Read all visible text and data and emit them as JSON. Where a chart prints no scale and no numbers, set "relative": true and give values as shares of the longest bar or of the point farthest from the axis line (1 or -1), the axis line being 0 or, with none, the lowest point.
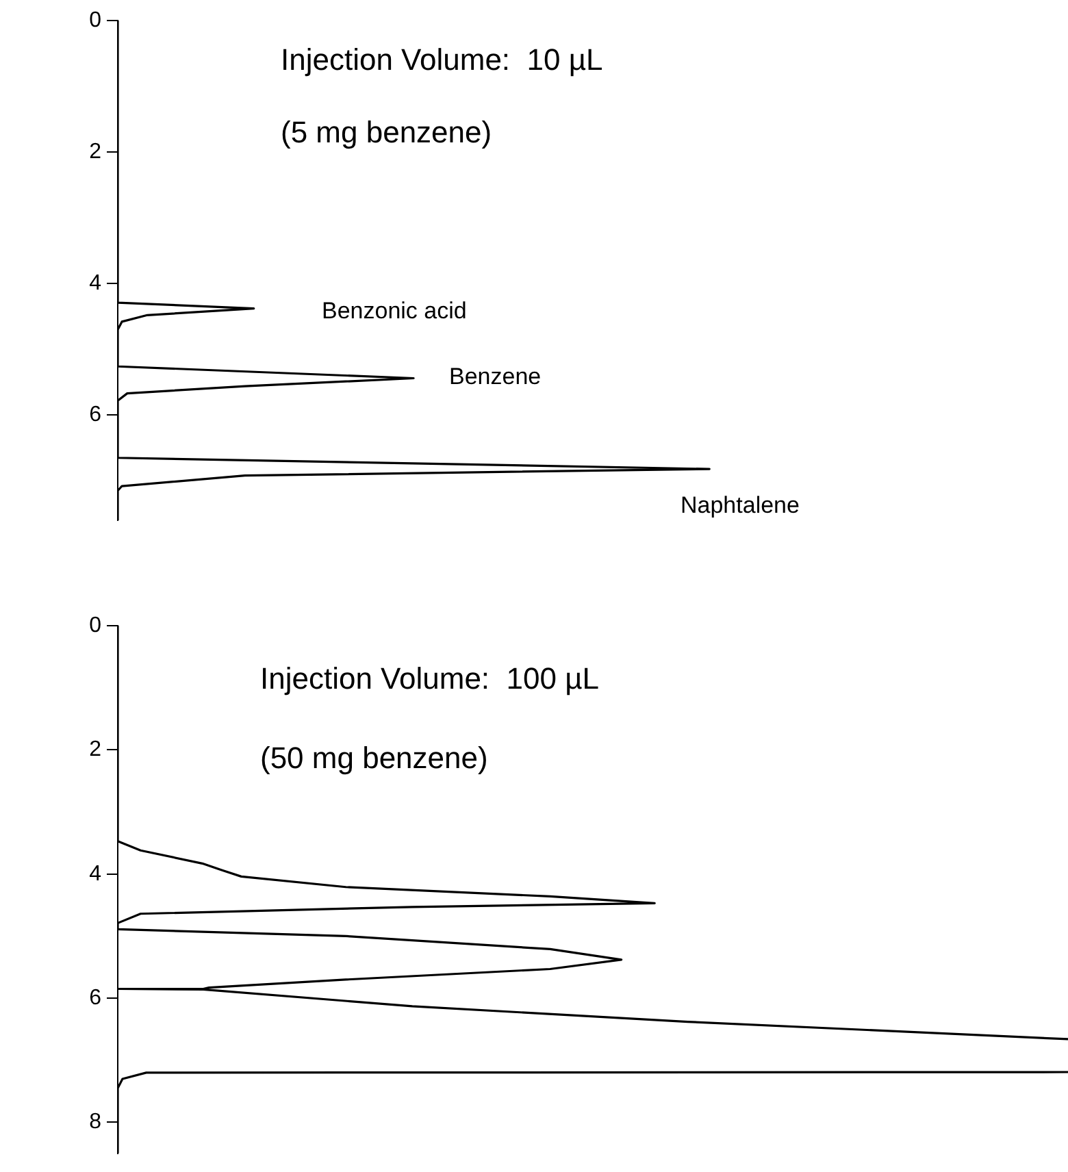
{
  "chart_data": [
    {
      "type": "line",
      "orientation": "horizontal",
      "relative": true,
      "title": "Injection Volume:  10 µL",
      "subtitle": "(5 mg benzene)",
      "color": "#000000",
      "marker": "none",
      "line_style": "solid",
      "x": [
        0,
        4.29,
        4.38,
        4.48,
        4.58,
        4.7,
        5.26,
        5.44,
        5.56,
        5.67,
        5.78,
        6.65,
        6.82,
        6.92,
        7.08,
        7.15,
        7.6
      ],
      "values": [
        0,
        0,
        0.23,
        0.05,
        0.007,
        0,
        0,
        0.5,
        0.215,
        0.016,
        0,
        0,
        1,
        0.215,
        0.007,
        0,
        0
      ],
      "ylim": [
        7.6,
        0
      ],
      "yticks": [
        0,
        2,
        4,
        6
      ],
      "annotations": [
        "Benzonic acid",
        "Benzene",
        "Naphtalene"
      ]
    },
    {
      "type": "line",
      "orientation": "horizontal",
      "relative": true,
      "title": "Injection Volume:  100 µL",
      "subtitle": "(50 mg benzene)",
      "color": "#000000",
      "marker": "none",
      "line_style": "solid",
      "x": [
        0,
        3.47,
        3.62,
        3.83,
        3.94,
        4.04,
        4.21,
        4.36,
        4.47,
        4.53,
        4.64,
        4.79,
        4.89,
        5.0,
        5.21,
        5.38,
        5.53,
        5.7,
        5.83,
        5.85,
        5.85,
        5.86,
        6.13,
        6.38,
        6.66,
        6.9,
        7.19,
        7.2,
        7.3,
        7.45,
        8.5
      ],
      "values": [
        0,
        0,
        0.024,
        0.089,
        0.11,
        0.13,
        0.24,
        0.455,
        0.565,
        0.31,
        0.024,
        0,
        0,
        0.24,
        0.455,
        0.53,
        0.455,
        0.24,
        0.096,
        0.09,
        0,
        0.09,
        0.31,
        0.6,
        1,
        null,
        1,
        0.03,
        0.005,
        0,
        0
      ],
      "ylim": [
        8.5,
        0
      ],
      "yticks": [
        0,
        2,
        4,
        6,
        8
      ]
    }
  ]
}
